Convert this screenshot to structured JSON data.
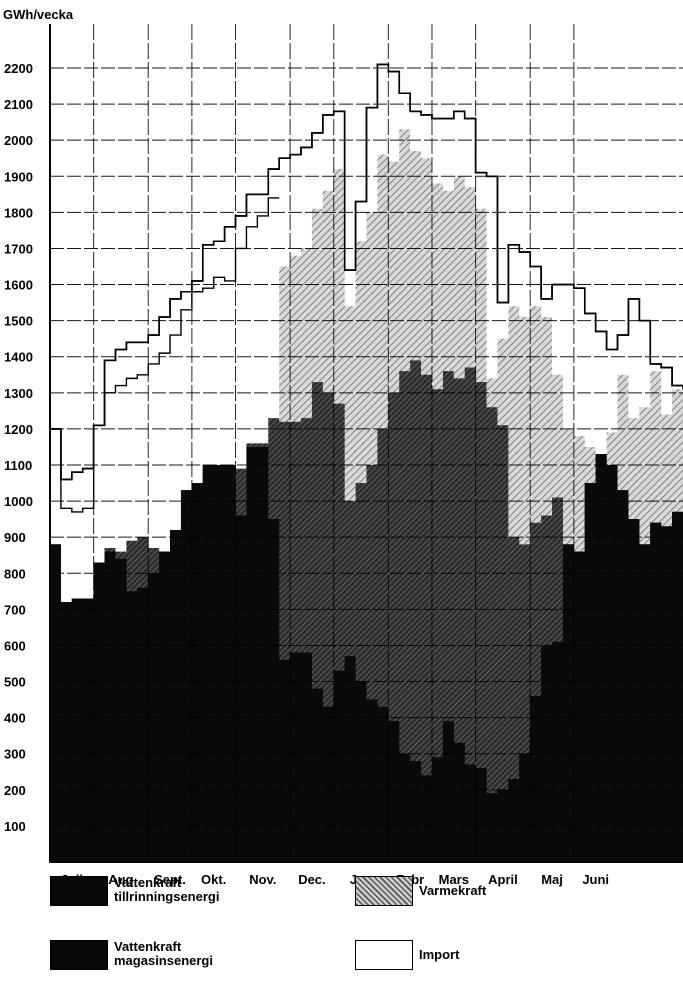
{
  "chart_data": {
    "type": "area",
    "ylabel": "GWh/vecka",
    "ylim": [
      0,
      2250
    ],
    "yticks": [
      100,
      200,
      300,
      400,
      500,
      600,
      700,
      800,
      900,
      1000,
      1100,
      1200,
      1300,
      1400,
      1500,
      1600,
      1700,
      1800,
      1900,
      2000,
      2100,
      2200
    ],
    "months": [
      "Juli",
      "Aug",
      "Sept.",
      "Okt.",
      "Nov.",
      "Dec.",
      "Jan",
      "Febr",
      "Mars",
      "April",
      "Maj",
      "Juni"
    ],
    "weeks_per_month": [
      4,
      5,
      4,
      4,
      5,
      4,
      5,
      4,
      4,
      5,
      4,
      4
    ],
    "grid": true,
    "stacking": "cumulative boundaries, bottom to top",
    "series": [
      {
        "name": "Vattenkraft tillrinningsenergi",
        "color": "#0a0a0a",
        "top": [
          880,
          720,
          730,
          730,
          830,
          860,
          840,
          750,
          760,
          800,
          860,
          920,
          1030,
          1050,
          1100,
          1100,
          1100,
          960,
          1150,
          1150,
          950,
          560,
          580,
          580,
          480,
          430,
          530,
          570,
          500,
          450,
          430,
          390,
          300,
          280,
          240,
          290,
          390,
          330,
          270,
          260,
          190,
          200,
          230,
          300,
          460,
          600,
          610,
          880,
          860,
          1050,
          1130,
          1100,
          1030,
          950,
          880,
          940,
          930,
          970
        ]
      },
      {
        "name": "Vattenkraft magasinsenergi",
        "color": "#3a3a3a",
        "top": [
          880,
          720,
          730,
          730,
          830,
          870,
          860,
          890,
          900,
          870,
          860,
          920,
          1030,
          1050,
          1100,
          1100,
          1100,
          1090,
          1160,
          1160,
          1230,
          1220,
          1220,
          1230,
          1330,
          1300,
          1270,
          1000,
          1050,
          1100,
          1200,
          1300,
          1360,
          1390,
          1350,
          1310,
          1360,
          1340,
          1370,
          1330,
          1260,
          1210,
          900,
          880,
          940,
          960,
          1010,
          880,
          860,
          1050,
          1130,
          1100,
          1030,
          950,
          880,
          940,
          930,
          970
        ]
      },
      {
        "name": "Varmekraft",
        "color": "#9a9a9a",
        "top": [
          880,
          720,
          730,
          730,
          830,
          870,
          860,
          890,
          900,
          870,
          860,
          920,
          1030,
          1050,
          1100,
          1100,
          1100,
          1090,
          1160,
          1160,
          1230,
          1650,
          1680,
          1700,
          1810,
          1860,
          1920,
          1540,
          1720,
          1800,
          1960,
          1940,
          2030,
          1970,
          1950,
          1880,
          1860,
          1900,
          1870,
          1810,
          1340,
          1450,
          1540,
          1510,
          1540,
          1510,
          1350,
          1200,
          1180,
          1150,
          1130,
          1190,
          1350,
          1230,
          1260,
          1360,
          1240,
          1310
        ]
      },
      {
        "name": "Import",
        "color": "#ffffff",
        "top": [
          1200,
          1060,
          1080,
          1090,
          1210,
          1390,
          1420,
          1440,
          1440,
          1460,
          1510,
          1560,
          1580,
          1610,
          1710,
          1720,
          1760,
          1790,
          1850,
          1850,
          1920,
          1950,
          1960,
          1980,
          2020,
          2070,
          2080,
          1640,
          1830,
          2090,
          2210,
          2190,
          2130,
          2080,
          2070,
          2060,
          2060,
          2080,
          2060,
          1910,
          1900,
          1550,
          1710,
          1690,
          1650,
          1560,
          1600,
          1600,
          1590,
          1520,
          1470,
          1420,
          1460,
          1560,
          1500,
          1380,
          1370,
          1320
        ]
      }
    ],
    "inner_outline": [
      1200,
      980,
      970,
      980,
      1210,
      1300,
      1320,
      1340,
      1350,
      1380,
      1410,
      1460,
      1530,
      1580,
      1590,
      1620,
      1610,
      1700,
      1760,
      1790,
      1840
    ]
  },
  "legend": {
    "items": [
      {
        "line1": "Vattenkraft",
        "line2": "tillrinningsenergi"
      },
      {
        "line1": "Vattenkraft",
        "line2": "magasinsenergi"
      },
      {
        "line1": "Varmekraft",
        "line2": ""
      },
      {
        "line1": "Import",
        "line2": ""
      }
    ]
  }
}
